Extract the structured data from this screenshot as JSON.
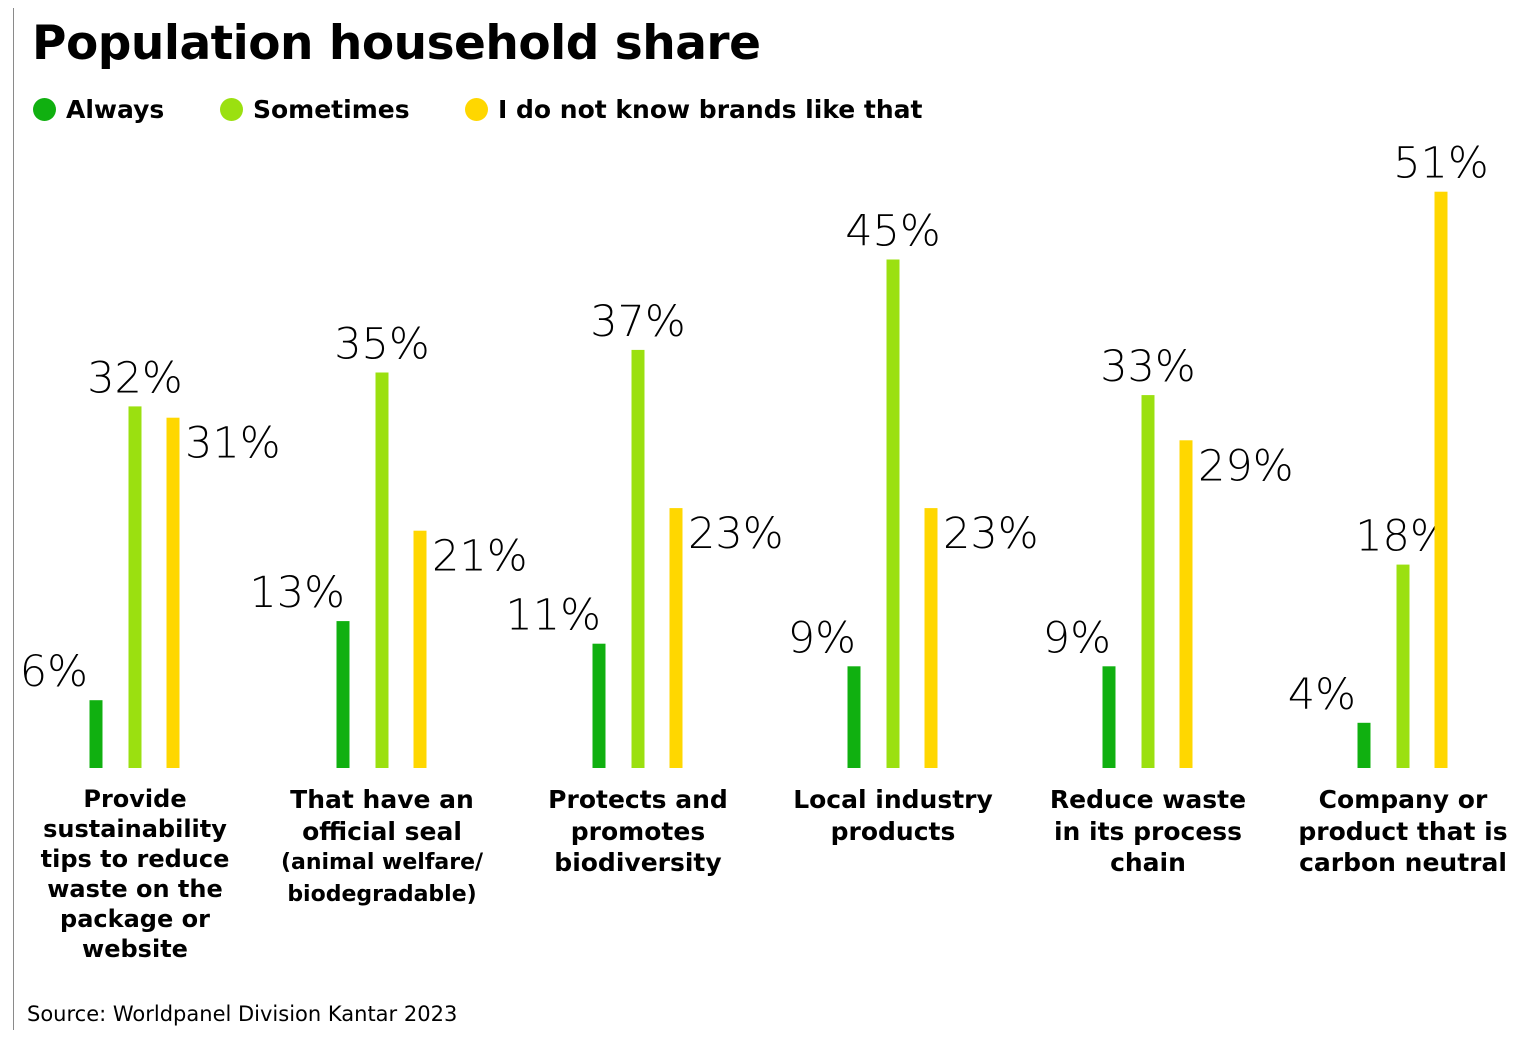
{
  "title": "Population household share",
  "source": "Source: Worldpanel Division Kantar 2023",
  "chart_data": {
    "type": "bar",
    "title": "Population household share",
    "xlabel": "",
    "ylabel": "",
    "ylim": [
      0,
      60
    ],
    "grid": false,
    "legend_position": "top-left",
    "value_suffix": "%",
    "categories": [
      "Provide sustainability tips to reduce waste on the package or website",
      "That have an official seal (animal welfare/ biodegradable)",
      "Protects and promotes biodiversity",
      "Local industry products",
      "Reduce waste in its process chain",
      "Company or product that is carbon neutral"
    ],
    "category_lines": [
      {
        "main": [
          "Provide",
          "sustainability",
          "tips to reduce",
          "waste on the",
          "package or",
          "website"
        ],
        "sub": []
      },
      {
        "main": [
          "That have an",
          "official seal"
        ],
        "sub": [
          "(animal welfare/",
          "biodegradable)"
        ]
      },
      {
        "main": [
          "Protects and",
          "promotes",
          "biodiversity"
        ],
        "sub": []
      },
      {
        "main": [
          "Local industry",
          "products"
        ],
        "sub": []
      },
      {
        "main": [
          "Reduce waste",
          "in its process",
          "chain"
        ],
        "sub": []
      },
      {
        "main": [
          "Company or",
          "product that is",
          "carbon neutral"
        ],
        "sub": []
      }
    ],
    "series": [
      {
        "name": "Always",
        "color": "#10b010",
        "values": [
          6,
          13,
          11,
          9,
          9,
          4
        ]
      },
      {
        "name": "Sometimes",
        "color": "#9be010",
        "values": [
          32,
          35,
          37,
          45,
          33,
          18
        ]
      },
      {
        "name": "I do not know brands like that",
        "color": "#ffd700",
        "values": [
          31,
          21,
          23,
          23,
          29,
          51
        ]
      }
    ]
  }
}
